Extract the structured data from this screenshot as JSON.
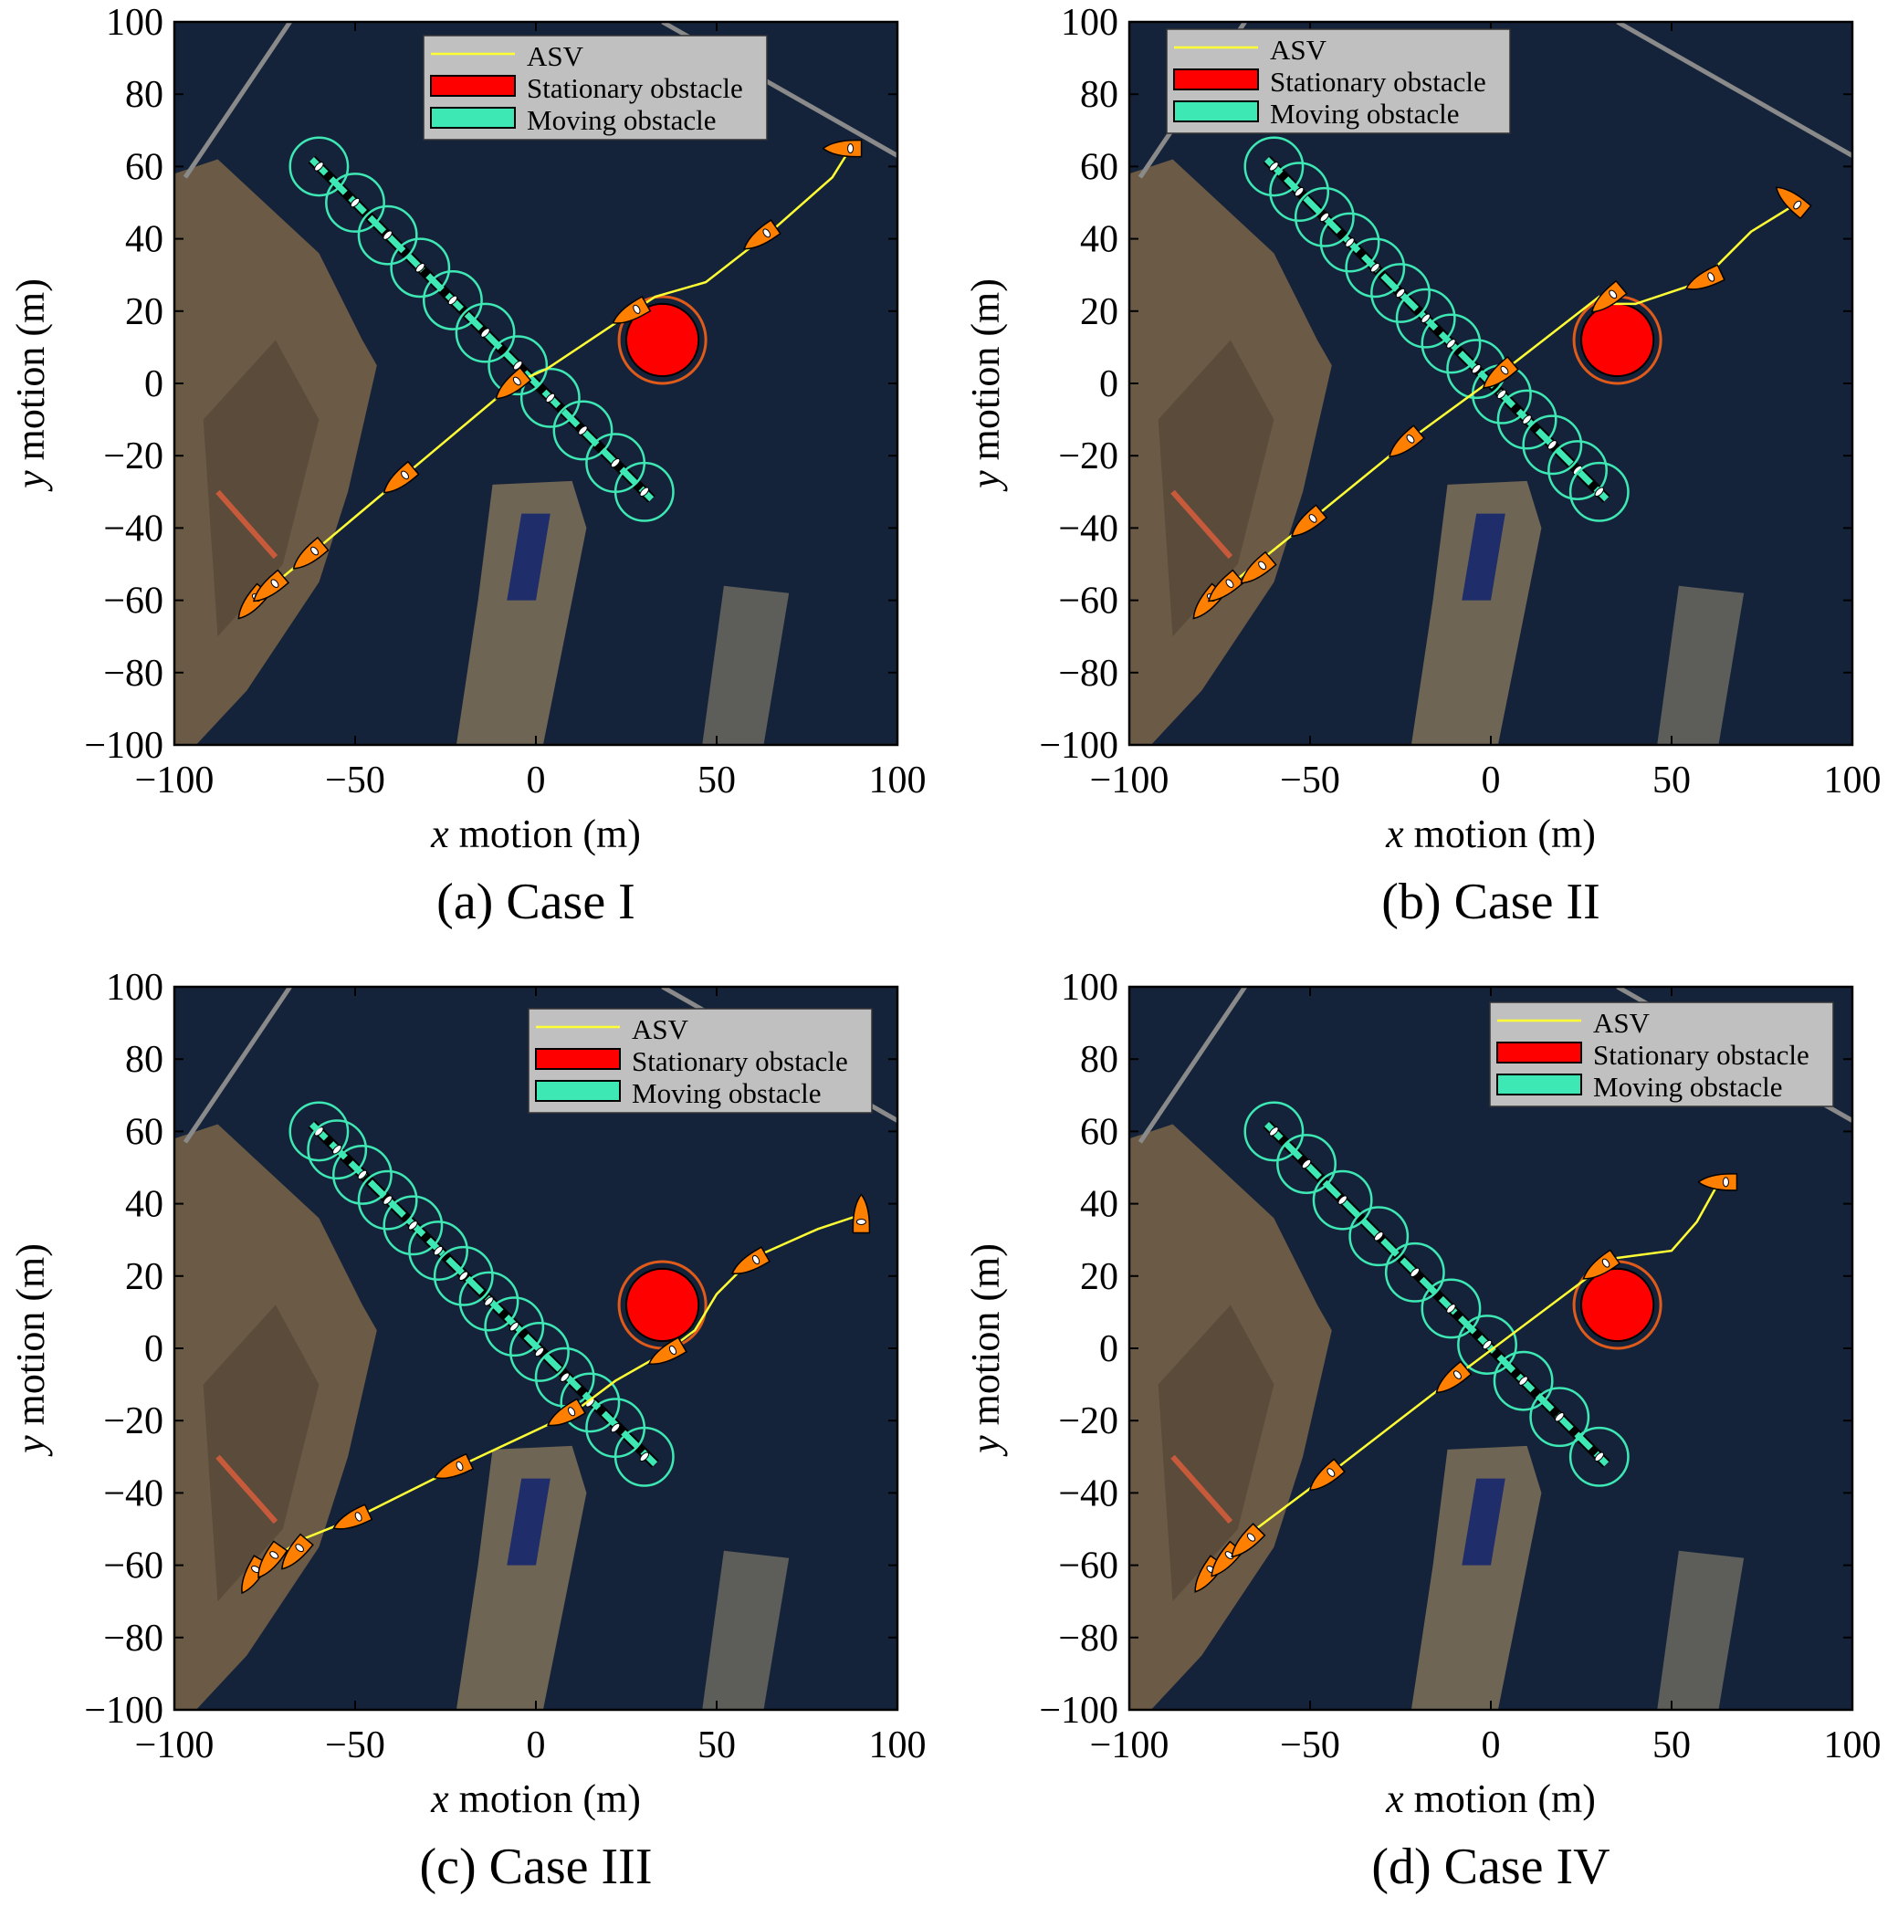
{
  "colors": {
    "asv": "#ffff33",
    "boat": "#ff8000",
    "stationary": "#ff0000",
    "stationary_ring": "#e05a1a",
    "moving": "#3ee8b4",
    "sea": "#15233a",
    "land": "#6b5a45"
  },
  "chart_data": [
    {
      "type": "line",
      "caption": "(a) Case I",
      "xlabel_italic": "x",
      "xlabel": " motion (m)",
      "ylabel_italic": "y",
      "ylabel": " motion (m)",
      "xlim": [
        -100,
        100
      ],
      "ylim": [
        -100,
        100
      ],
      "xticks": [
        "−100",
        "−50",
        "0",
        "50",
        "100"
      ],
      "xtick_values": [
        -100,
        -50,
        0,
        50,
        100
      ],
      "yticks": [
        "100",
        "80",
        "60",
        "40",
        "20",
        "0",
        "−20",
        "−40",
        "−60",
        "−80",
        "−100"
      ],
      "ytick_values": [
        100,
        80,
        60,
        40,
        20,
        0,
        -20,
        -40,
        -60,
        -80,
        -100
      ],
      "legend": {
        "placement": "top",
        "entries": [
          "ASV",
          "Stationary obstacle",
          "Moving obstacle"
        ]
      },
      "asv_path": [
        [
          -80,
          -62
        ],
        [
          -73,
          -56
        ],
        [
          -62,
          -47
        ],
        [
          -37,
          -26
        ],
        [
          -6,
          0
        ],
        [
          3,
          4
        ],
        [
          27,
          20
        ],
        [
          33,
          24
        ],
        [
          47,
          28
        ],
        [
          65,
          42
        ],
        [
          82,
          57
        ],
        [
          87,
          65
        ]
      ],
      "asv_boats": [
        [
          -78,
          -60,
          50
        ],
        [
          -73,
          -56,
          40
        ],
        [
          -62,
          -47,
          40
        ],
        [
          -37,
          -26,
          40
        ],
        [
          -6,
          0,
          40
        ],
        [
          27,
          20,
          30
        ],
        [
          63,
          41,
          35
        ],
        [
          86,
          65,
          0
        ]
      ],
      "stationary_obstacle": {
        "center": [
          35,
          12
        ],
        "radius": 10,
        "safety_radius": 12
      },
      "moving_obstacle": {
        "start": [
          -62,
          62
        ],
        "end": [
          32,
          -32
        ],
        "positions": [
          [
            -60,
            60
          ],
          [
            -50,
            50
          ],
          [
            -41,
            41
          ],
          [
            -32,
            32
          ],
          [
            -23,
            23
          ],
          [
            -14,
            14
          ],
          [
            -5,
            5
          ],
          [
            4,
            -4
          ],
          [
            13,
            -13
          ],
          [
            22,
            -22
          ],
          [
            30,
            -30
          ]
        ],
        "radius": 8
      }
    },
    {
      "type": "line",
      "caption": "(b) Case II",
      "xlabel_italic": "x",
      "xlabel": " motion (m)",
      "ylabel_italic": "y",
      "ylabel": " motion (m)",
      "xlim": [
        -100,
        100
      ],
      "ylim": [
        -100,
        100
      ],
      "xticks": [
        "−100",
        "−50",
        "0",
        "50",
        "100"
      ],
      "xtick_values": [
        -100,
        -50,
        0,
        50,
        100
      ],
      "yticks": [
        "100",
        "80",
        "60",
        "40",
        "20",
        "0",
        "−20",
        "−40",
        "−60",
        "−80",
        "−100"
      ],
      "ytick_values": [
        100,
        80,
        60,
        40,
        20,
        0,
        -20,
        -40,
        -60,
        -80,
        -100
      ],
      "legend": {
        "placement": "top-left",
        "entries": [
          "ASV",
          "Stationary obstacle",
          "Moving obstacle"
        ]
      },
      "asv_path": [
        [
          -80,
          -62
        ],
        [
          -65,
          -50
        ],
        [
          -50,
          -38
        ],
        [
          -23,
          -16
        ],
        [
          3,
          3
        ],
        [
          30,
          24
        ],
        [
          34,
          22
        ],
        [
          40,
          22
        ],
        [
          58,
          28
        ],
        [
          72,
          42
        ],
        [
          85,
          50
        ]
      ],
      "asv_boats": [
        [
          -78,
          -60,
          50
        ],
        [
          -73,
          -56,
          40
        ],
        [
          -64,
          -51,
          40
        ],
        [
          -50,
          -38,
          40
        ],
        [
          -23,
          -16,
          40
        ],
        [
          3,
          3,
          40
        ],
        [
          33,
          24,
          40
        ],
        [
          60,
          29,
          25
        ],
        [
          84,
          50,
          -40
        ]
      ],
      "stationary_obstacle": {
        "center": [
          35,
          12
        ],
        "radius": 10,
        "safety_radius": 12
      },
      "moving_obstacle": {
        "start": [
          -62,
          62
        ],
        "end": [
          32,
          -32
        ],
        "positions": [
          [
            -60,
            60
          ],
          [
            -53,
            53
          ],
          [
            -46,
            46
          ],
          [
            -39,
            39
          ],
          [
            -32,
            32
          ],
          [
            -25,
            25
          ],
          [
            -18,
            18
          ],
          [
            -11,
            11
          ],
          [
            -4,
            4
          ],
          [
            3,
            -3
          ],
          [
            10,
            -10
          ],
          [
            17,
            -17
          ],
          [
            24,
            -24
          ],
          [
            30,
            -30
          ]
        ],
        "radius": 8
      }
    },
    {
      "type": "line",
      "caption": "(c) Case III",
      "xlabel_italic": "x",
      "xlabel": " motion (m)",
      "ylabel_italic": "y",
      "ylabel": " motion (m)",
      "xlim": [
        -100,
        100
      ],
      "ylim": [
        -100,
        100
      ],
      "xticks": [
        "−100",
        "−50",
        "0",
        "50",
        "100"
      ],
      "xtick_values": [
        -100,
        -50,
        0,
        50,
        100
      ],
      "yticks": [
        "100",
        "80",
        "60",
        "40",
        "20",
        "0",
        "−20",
        "−40",
        "−60",
        "−80",
        "−100"
      ],
      "ytick_values": [
        100,
        80,
        60,
        40,
        20,
        0,
        -20,
        -40,
        -60,
        -80,
        -100
      ],
      "legend": {
        "placement": "top-right",
        "entries": [
          "ASV",
          "Stationary obstacle",
          "Moving obstacle"
        ]
      },
      "asv_path": [
        [
          -78,
          -62
        ],
        [
          -65,
          -53
        ],
        [
          -50,
          -47
        ],
        [
          -22,
          -33
        ],
        [
          10,
          -18
        ],
        [
          22,
          -9
        ],
        [
          36,
          -1
        ],
        [
          44,
          5
        ],
        [
          50,
          15
        ],
        [
          60,
          25
        ],
        [
          78,
          33
        ],
        [
          90,
          37
        ]
      ],
      "asv_boats": [
        [
          -78,
          -62,
          60
        ],
        [
          -73,
          -58,
          55
        ],
        [
          -66,
          -56,
          50
        ],
        [
          -50,
          -47,
          25
        ],
        [
          -22,
          -33,
          25
        ],
        [
          9,
          -18,
          30
        ],
        [
          37,
          -1,
          30
        ],
        [
          60,
          24,
          30
        ],
        [
          90,
          36,
          -90
        ]
      ],
      "stationary_obstacle": {
        "center": [
          35,
          12
        ],
        "radius": 10,
        "safety_radius": 12
      },
      "moving_obstacle": {
        "start": [
          -62,
          62
        ],
        "end": [
          33,
          -32
        ],
        "positions": [
          [
            -60,
            60
          ],
          [
            -55,
            55
          ],
          [
            -48,
            48
          ],
          [
            -41,
            41
          ],
          [
            -34,
            34
          ],
          [
            -27,
            27
          ],
          [
            -20,
            20
          ],
          [
            -13,
            13
          ],
          [
            -6,
            6
          ],
          [
            1,
            -1
          ],
          [
            8,
            -8
          ],
          [
            15,
            -15
          ],
          [
            22,
            -22
          ],
          [
            30,
            -30
          ]
        ],
        "radius": 8
      }
    },
    {
      "type": "line",
      "caption": "(d) Case IV",
      "xlabel_italic": "x",
      "xlabel": " motion (m)",
      "ylabel_italic": "y",
      "ylabel": " motion (m)",
      "xlim": [
        -100,
        100
      ],
      "ylim": [
        -100,
        100
      ],
      "xticks": [
        "−100",
        "−50",
        "0",
        "50",
        "100"
      ],
      "xtick_values": [
        -100,
        -50,
        0,
        50,
        100
      ],
      "yticks": [
        "100",
        "80",
        "60",
        "40",
        "20",
        "0",
        "−20",
        "−40",
        "−60",
        "−80",
        "−100"
      ],
      "ytick_values": [
        100,
        80,
        60,
        40,
        20,
        0,
        -20,
        -40,
        -60,
        -80,
        -100
      ],
      "legend": {
        "placement": "top-right",
        "entries": [
          "ASV",
          "Stationary obstacle",
          "Moving obstacle"
        ]
      },
      "asv_path": [
        [
          -78,
          -62
        ],
        [
          -65,
          -50
        ],
        [
          -45,
          -35
        ],
        [
          -10,
          -8
        ],
        [
          30,
          22
        ],
        [
          35,
          25
        ],
        [
          50,
          27
        ],
        [
          57,
          35
        ],
        [
          62,
          44
        ],
        [
          65,
          46
        ]
      ],
      "asv_boats": [
        [
          -78,
          -62,
          55
        ],
        [
          -73,
          -58,
          50
        ],
        [
          -67,
          -53,
          45
        ],
        [
          -45,
          -35,
          40
        ],
        [
          -10,
          -8,
          40
        ],
        [
          31,
          23,
          35
        ],
        [
          64,
          46,
          0
        ]
      ],
      "stationary_obstacle": {
        "center": [
          35,
          12
        ],
        "radius": 10,
        "safety_radius": 12
      },
      "moving_obstacle": {
        "start": [
          -62,
          62
        ],
        "end": [
          32,
          -32
        ],
        "positions": [
          [
            -60,
            60
          ],
          [
            -51,
            51
          ],
          [
            -41,
            41
          ],
          [
            -31,
            31
          ],
          [
            -21,
            21
          ],
          [
            -11,
            11
          ],
          [
            -1,
            1
          ],
          [
            9,
            -9
          ],
          [
            19,
            -19
          ],
          [
            30,
            -30
          ]
        ],
        "radius": 8
      }
    }
  ]
}
